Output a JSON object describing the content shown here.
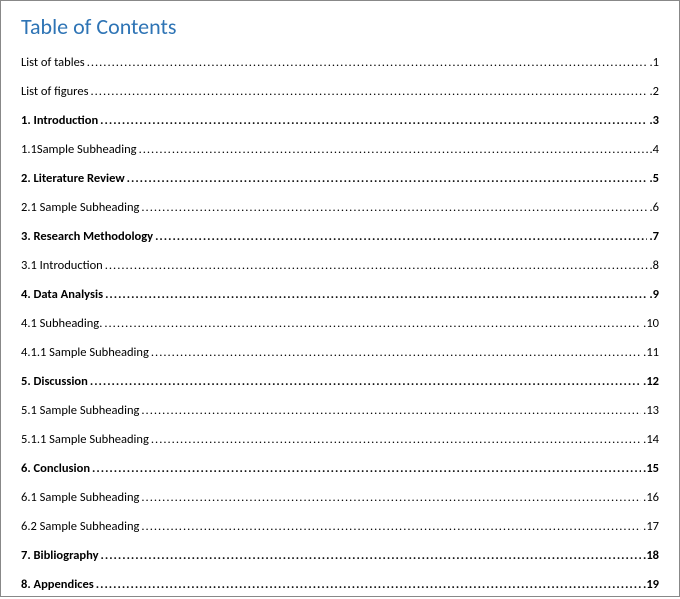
{
  "title": "Table of Contents",
  "title_color": "#2e74b5",
  "font_family": "Calibri",
  "text_color": "#000000",
  "background_color": "#ffffff",
  "border_color": "#888888",
  "title_fontsize": 22,
  "entry_fontsize": 12.5,
  "entries": [
    {
      "label": "List of tables ",
      "page": ".1",
      "bold": false
    },
    {
      "label": "List of figures ",
      "page": ".2",
      "bold": false
    },
    {
      "label": "1. Introduction ",
      "page": ".3",
      "bold": true
    },
    {
      "label": "1.1Sample Subheading  ",
      "page": ".4",
      "bold": false
    },
    {
      "label": "2. Literature Review ",
      "page": ".5",
      "bold": true
    },
    {
      "label": "2.1 Sample Subheading ",
      "page": ".6",
      "bold": false
    },
    {
      "label": "3. Research Methodology ",
      "page": ".7",
      "bold": true
    },
    {
      "label": "3.1 Introduction",
      "page": ".8",
      "bold": false
    },
    {
      "label": "4. Data Analysis",
      "page": ".9",
      "bold": true
    },
    {
      "label": "4.1 Subheading. ",
      "page": ".10",
      "bold": false
    },
    {
      "label": "4.1.1 Sample Subheading ",
      "page": ".11",
      "bold": false
    },
    {
      "label": "5. Discussion ",
      "page": ".12",
      "bold": true
    },
    {
      "label": "5.1 Sample Subheading",
      "page": ".13",
      "bold": false
    },
    {
      "label": "5.1.1 Sample Subheading",
      "page": ".14",
      "bold": false
    },
    {
      "label": "6. Conclusion ",
      "page": ".15",
      "bold": true
    },
    {
      "label": "6.1 Sample Subheading ",
      "page": ".16",
      "bold": false
    },
    {
      "label": "6.2 Sample Subheading ",
      "page": ".17",
      "bold": false
    },
    {
      "label": "7. Bibliography",
      "page": ".18",
      "bold": true
    },
    {
      "label": "8. Appendices ",
      "page": ".19",
      "bold": true
    }
  ]
}
